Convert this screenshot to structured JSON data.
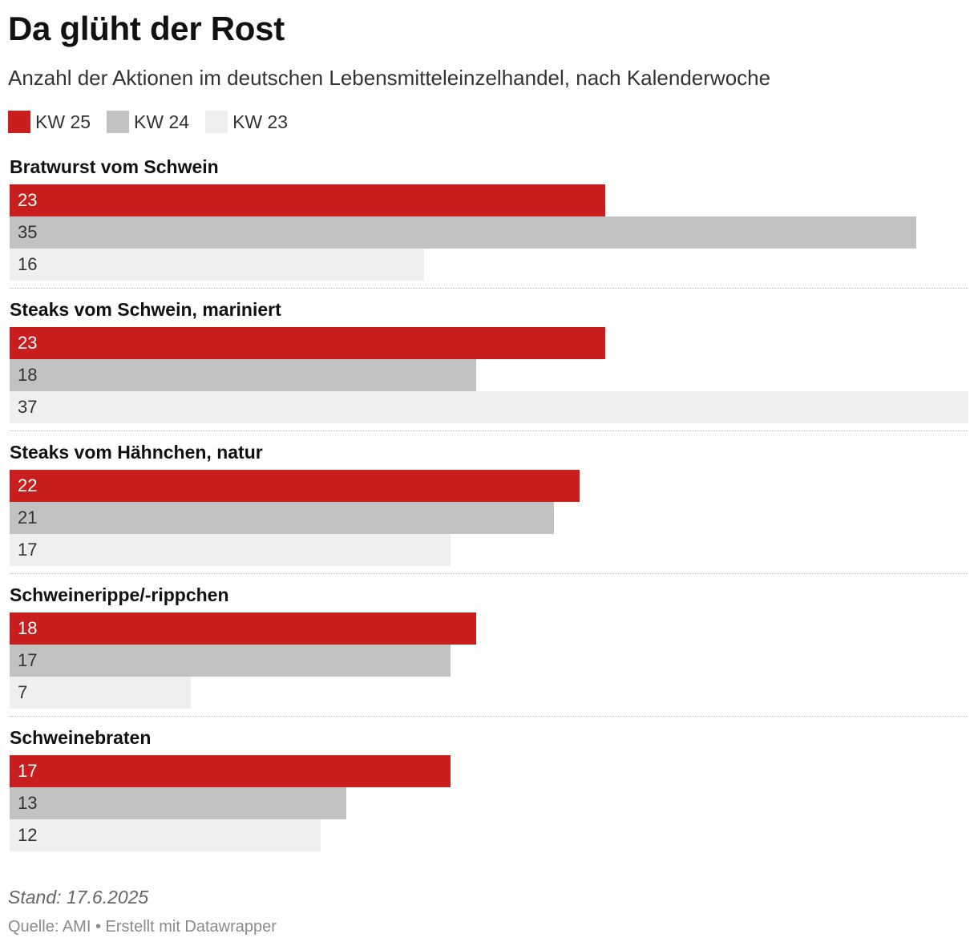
{
  "title": "Da glüht der Rost",
  "subtitle": "Anzahl der Aktionen im deutschen Lebensmitteleinzelhandel, nach Kalenderwoche",
  "colors": {
    "KW 25": "#c81e1e",
    "KW 24": "#c2c2c2",
    "KW 23": "#efefef",
    "label_on_dark": "#ffffff",
    "label_on_light": "#333333"
  },
  "chart_data": {
    "type": "bar",
    "orientation": "horizontal",
    "categories": [
      "Bratwurst vom Schwein",
      "Steaks vom Schwein, mariniert",
      "Steaks vom Hähnchen, natur",
      "Schweinerippe/-rippchen",
      "Schweinebraten"
    ],
    "series": [
      {
        "name": "KW 25",
        "values": [
          23,
          23,
          22,
          18,
          17
        ]
      },
      {
        "name": "KW 24",
        "values": [
          35,
          18,
          21,
          17,
          13
        ]
      },
      {
        "name": "KW 23",
        "values": [
          16,
          37,
          17,
          7,
          12
        ]
      }
    ],
    "xlim": [
      0,
      37
    ],
    "legend": "top-left",
    "grid": false
  },
  "notes": "Stand: 17.6.2025",
  "footer": {
    "source_label": "Quelle:",
    "source": "AMI",
    "separator": "•",
    "credit": "Erstellt mit Datawrapper"
  }
}
